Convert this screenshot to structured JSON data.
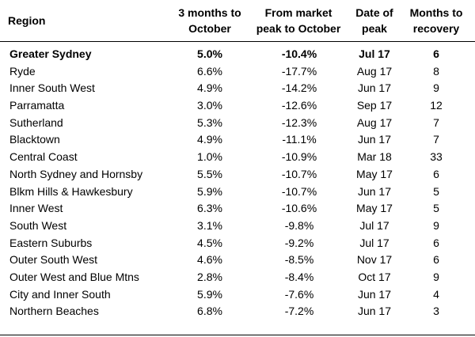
{
  "header": {
    "region": "Region",
    "col1_line1": "3 months to",
    "col1_line2": "October",
    "col2_line1": "From market",
    "col2_line2": "peak to October",
    "col3_line1": "Date of",
    "col3_line2": "peak",
    "col4_line1": "Months to",
    "col4_line2": "recovery"
  },
  "rows": [
    {
      "region": "Greater Sydney",
      "three_months": "5.0%",
      "from_peak": "-10.4%",
      "peak_date": "Jul 17",
      "months": "6",
      "bold": true
    },
    {
      "region": "Ryde",
      "three_months": "6.6%",
      "from_peak": "-17.7%",
      "peak_date": "Aug 17",
      "months": "8"
    },
    {
      "region": "Inner South West",
      "three_months": "4.9%",
      "from_peak": "-14.2%",
      "peak_date": "Jun 17",
      "months": "9"
    },
    {
      "region": "Parramatta",
      "three_months": "3.0%",
      "from_peak": "-12.6%",
      "peak_date": "Sep 17",
      "months": "12"
    },
    {
      "region": "Sutherland",
      "three_months": "5.3%",
      "from_peak": "-12.3%",
      "peak_date": "Aug 17",
      "months": "7"
    },
    {
      "region": "Blacktown",
      "three_months": "4.9%",
      "from_peak": "-11.1%",
      "peak_date": "Jun 17",
      "months": "7"
    },
    {
      "region": "Central Coast",
      "three_months": "1.0%",
      "from_peak": "-10.9%",
      "peak_date": "Mar 18",
      "months": "33"
    },
    {
      "region": "North Sydney and Hornsby",
      "three_months": "5.5%",
      "from_peak": "-10.7%",
      "peak_date": "May 17",
      "months": "6"
    },
    {
      "region": "Blkm Hills & Hawkesbury",
      "three_months": "5.9%",
      "from_peak": "-10.7%",
      "peak_date": "Jun 17",
      "months": "5"
    },
    {
      "region": "Inner West",
      "three_months": "6.3%",
      "from_peak": "-10.6%",
      "peak_date": "May 17",
      "months": "5"
    },
    {
      "region": "South West",
      "three_months": "3.1%",
      "from_peak": "-9.8%",
      "peak_date": "Jul 17",
      "months": "9"
    },
    {
      "region": "Eastern Suburbs",
      "three_months": "4.5%",
      "from_peak": "-9.2%",
      "peak_date": "Jul 17",
      "months": "6"
    },
    {
      "region": "Outer South West",
      "three_months": "4.6%",
      "from_peak": "-8.5%",
      "peak_date": "Nov 17",
      "months": "6"
    },
    {
      "region": "Outer West and Blue Mtns",
      "three_months": "2.8%",
      "from_peak": "-8.4%",
      "peak_date": "Oct 17",
      "months": "9"
    },
    {
      "region": "City and Inner South",
      "three_months": "5.9%",
      "from_peak": "-7.6%",
      "peak_date": "Jun 17",
      "months": "4"
    },
    {
      "region": "Northern Beaches",
      "three_months": "6.8%",
      "from_peak": "-7.2%",
      "peak_date": "Jun 17",
      "months": "3"
    }
  ]
}
